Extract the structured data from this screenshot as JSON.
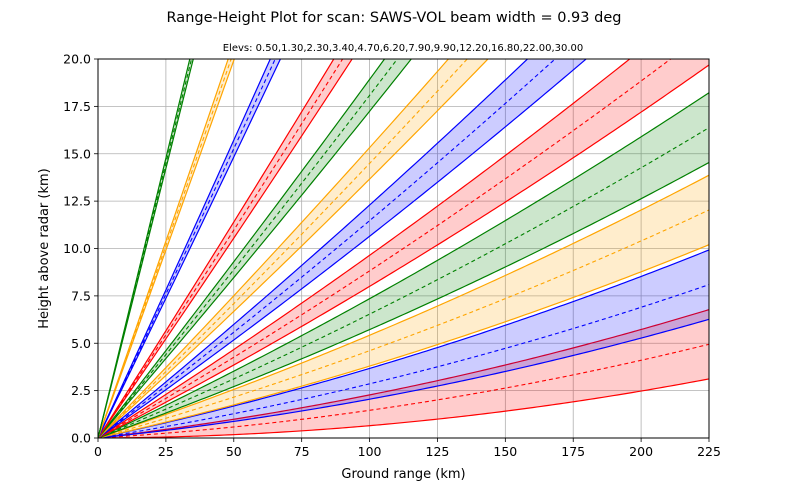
{
  "chart_data": {
    "type": "line",
    "title": "Range-Height Plot for scan: SAWS-VOL  beam width = 0.93 deg",
    "subtitle": "Elevs: 0.50,1.30,2.30,3.40,4.70,6.20,7.90,9.90,12.20,16.80,22.00,30.00",
    "xlabel": "Ground range (km)",
    "ylabel": "Height above radar (km)",
    "xlim": [
      0,
      225
    ],
    "ylim": [
      0,
      20
    ],
    "xticks": [
      "0",
      "25",
      "50",
      "75",
      "100",
      "125",
      "150",
      "175",
      "200",
      "225"
    ],
    "yticks": [
      "0.0",
      "2.5",
      "5.0",
      "7.5",
      "10.0",
      "12.5",
      "15.0",
      "17.5",
      "20.0"
    ],
    "grid": true,
    "beam_width_deg": 0.93,
    "elevations": [
      0.5,
      1.3,
      2.3,
      3.4,
      4.7,
      6.2,
      7.9,
      9.9,
      12.2,
      16.8,
      22.0,
      30.0
    ],
    "colors": [
      "#ff0000",
      "#0000ff",
      "#ffa500",
      "#008000"
    ]
  }
}
